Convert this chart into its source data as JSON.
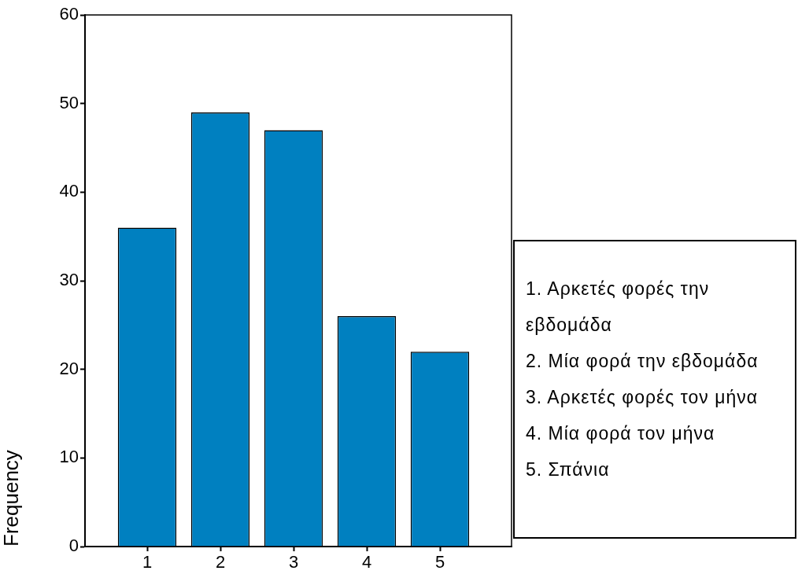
{
  "chart_data": {
    "type": "bar",
    "ylabel": "Frequency",
    "categories": [
      "1",
      "2",
      "3",
      "4",
      "5"
    ],
    "values": [
      36,
      49,
      47,
      26,
      22
    ],
    "color": "#0080c0",
    "ylim": [
      0,
      60
    ],
    "yticks": [
      0,
      10,
      20,
      30,
      40,
      50,
      60
    ],
    "annotations": [
      "1. Αρκετές φορές την εβδομάδα",
      "2. Μία φορά την εβδομάδα",
      "3. Αρκετές φορές τον μήνα",
      "4. Μία φορά τον μήνα",
      "5. Σπάνια"
    ]
  }
}
